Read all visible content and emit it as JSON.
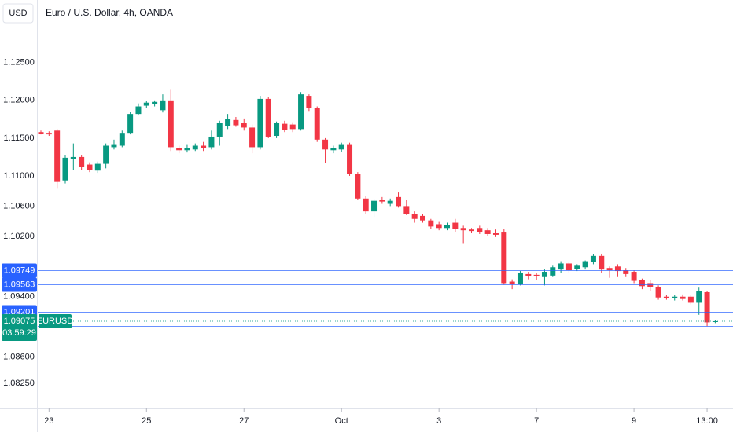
{
  "chart_data": {
    "type": "candlestick",
    "title": "Euro / U.S. Dollar, 4h, OANDA",
    "currency": "USD",
    "symbol": "EURUSD",
    "countdown": "03:59:29",
    "up_color": "#089981",
    "down_color": "#f23645",
    "categories": [
      null,
      "23",
      null,
      null,
      null,
      null,
      null,
      null,
      null,
      null,
      null,
      null,
      null,
      "25",
      null,
      null,
      null,
      null,
      null,
      null,
      null,
      null,
      null,
      null,
      null,
      "27",
      null,
      null,
      null,
      null,
      null,
      null,
      null,
      null,
      null,
      null,
      null,
      "Oct",
      null,
      null,
      null,
      null,
      null,
      null,
      null,
      null,
      null,
      null,
      null,
      "3",
      null,
      null,
      null,
      null,
      null,
      null,
      null,
      null,
      null,
      null,
      null,
      "7",
      null,
      null,
      null,
      null,
      null,
      null,
      null,
      null,
      null,
      null,
      null,
      "9",
      null,
      null,
      null,
      null,
      null,
      null,
      null,
      null,
      "13:00",
      null
    ],
    "open": [
      1.1158,
      1.1157,
      1.116,
      1.1094,
      1.1122,
      1.1125,
      1.1115,
      1.1107,
      1.1116,
      1.1138,
      1.114,
      1.1157,
      1.1182,
      1.1193,
      1.1195,
      1.1187,
      1.12,
      1.1137,
      1.1134,
      1.1135,
      1.114,
      1.1138,
      1.1152,
      1.1166,
      1.1174,
      1.117,
      1.1164,
      1.1138,
      1.1202,
      1.1153,
      1.1169,
      1.1168,
      1.1162,
      1.1206,
      1.119,
      1.1148,
      1.1134,
      1.1135,
      1.1142,
      1.1103,
      1.107,
      1.1053,
      1.1068,
      1.1063,
      1.1072,
      1.106,
      1.105,
      1.1047,
      1.1041,
      1.1036,
      1.1031,
      1.1038,
      1.1031,
      1.1029,
      1.1031,
      1.1028,
      1.1024,
      1.1025,
      1.096,
      1.0957,
      1.097,
      1.0969,
      1.0966,
      1.0968,
      1.0976,
      1.0984,
      1.0977,
      1.0979,
      1.0986,
      1.0994,
      1.0978,
      1.098,
      1.0975,
      1.0973,
      1.0962,
      1.0958,
      1.0953,
      1.094,
      1.0938,
      1.094,
      1.094,
      1.0932,
      1.0946,
      1.0907
    ],
    "high": [
      1.116,
      1.1159,
      1.1162,
      1.1128,
      1.1143,
      1.1128,
      1.1118,
      1.1119,
      1.1143,
      1.1148,
      1.116,
      1.1185,
      1.1196,
      1.1199,
      1.12,
      1.1208,
      1.1215,
      1.114,
      1.1142,
      1.1143,
      1.1145,
      1.116,
      1.1173,
      1.1182,
      1.1178,
      1.1176,
      1.1168,
      1.1206,
      1.1205,
      1.1172,
      1.1173,
      1.1171,
      1.1211,
      1.1208,
      1.1192,
      1.115,
      1.114,
      1.1144,
      1.1144,
      1.1105,
      1.1073,
      1.107,
      1.1072,
      1.107,
      1.1078,
      1.1068,
      1.1053,
      1.105,
      1.1043,
      1.1039,
      1.1038,
      1.1043,
      1.1034,
      1.1031,
      1.1034,
      1.1031,
      1.1029,
      1.103,
      1.0963,
      1.0974,
      1.0973,
      1.0972,
      1.0976,
      1.0981,
      1.0987,
      1.0986,
      1.0983,
      1.0988,
      1.0996,
      1.0997,
      1.098,
      1.0983,
      1.0978,
      1.0975,
      1.0964,
      1.0962,
      1.0955,
      1.0942,
      1.0942,
      1.0943,
      1.0942,
      1.0952,
      1.0948,
      1.0909
    ],
    "low": [
      1.1155,
      1.1153,
      1.1084,
      1.109,
      1.1108,
      1.1108,
      1.1105,
      1.1104,
      1.111,
      1.1135,
      1.1138,
      1.1155,
      1.118,
      1.119,
      1.1192,
      1.1184,
      1.1133,
      1.113,
      1.1131,
      1.1133,
      1.1133,
      1.1135,
      1.114,
      1.1162,
      1.1165,
      1.116,
      1.113,
      1.1135,
      1.115,
      1.115,
      1.1158,
      1.1158,
      1.116,
      1.1186,
      1.1145,
      1.1117,
      1.113,
      1.1132,
      1.11,
      1.1068,
      1.105,
      1.1046,
      1.1063,
      1.106,
      1.1058,
      1.1048,
      1.1038,
      1.1038,
      1.103,
      1.1028,
      1.1028,
      1.1026,
      1.101,
      1.1024,
      1.1023,
      1.102,
      1.1019,
      1.0956,
      1.095,
      1.0955,
      1.0963,
      1.0962,
      1.0955,
      1.0966,
      1.0972,
      1.0972,
      1.0974,
      1.0976,
      1.0983,
      1.0972,
      1.0965,
      1.0966,
      1.0966,
      1.0958,
      1.095,
      1.0948,
      1.0936,
      1.0936,
      1.0935,
      1.0935,
      1.093,
      1.0916,
      1.0901,
      1.0905
    ],
    "close": [
      1.1156,
      1.1155,
      1.1092,
      1.1124,
      1.1125,
      1.1112,
      1.1108,
      1.1116,
      1.114,
      1.1142,
      1.1157,
      1.1182,
      1.1192,
      1.1197,
      1.1198,
      1.12,
      1.1138,
      1.1134,
      1.1137,
      1.114,
      1.1137,
      1.1152,
      1.117,
      1.1175,
      1.1167,
      1.1164,
      1.1138,
      1.1202,
      1.1152,
      1.117,
      1.1161,
      1.1162,
      1.1208,
      1.119,
      1.1148,
      1.1135,
      1.1137,
      1.1142,
      1.1103,
      1.107,
      1.1053,
      1.1067,
      1.1066,
      1.1067,
      1.106,
      1.105,
      1.1043,
      1.1041,
      1.1033,
      1.1031,
      1.1035,
      1.103,
      1.1028,
      1.1027,
      1.1026,
      1.1023,
      1.1022,
      1.0958,
      1.0957,
      1.0972,
      1.0967,
      1.0967,
      1.0973,
      1.0979,
      1.0984,
      1.0975,
      1.0981,
      1.0987,
      1.0994,
      1.0976,
      1.0975,
      1.0974,
      1.097,
      1.0961,
      1.0954,
      1.0953,
      1.0939,
      1.0938,
      1.094,
      1.0937,
      1.0932,
      1.0947,
      1.0906,
      1.09075
    ],
    "ylim": [
      1.0792,
      1.1333
    ],
    "yticks": [
      {
        "value": 1.0825,
        "label": "1.08250"
      },
      {
        "value": 1.086,
        "label": "1.08600"
      },
      {
        "value": 1.094,
        "label": "1.09400"
      },
      {
        "value": 1.102,
        "label": "1.10200"
      },
      {
        "value": 1.106,
        "label": "1.10600"
      },
      {
        "value": 1.11,
        "label": "1.11000"
      },
      {
        "value": 1.115,
        "label": "1.11500"
      },
      {
        "value": 1.12,
        "label": "1.12000"
      },
      {
        "value": 1.125,
        "label": "1.12500"
      }
    ],
    "price_lines": [
      {
        "value": 1.09749,
        "color": "#2962ff"
      },
      {
        "value": 1.09563,
        "color": "#2962ff"
      },
      {
        "value": 1.09201,
        "color": "#2962ff"
      },
      {
        "value": 1.09015,
        "color": "#2962ff"
      }
    ]
  }
}
